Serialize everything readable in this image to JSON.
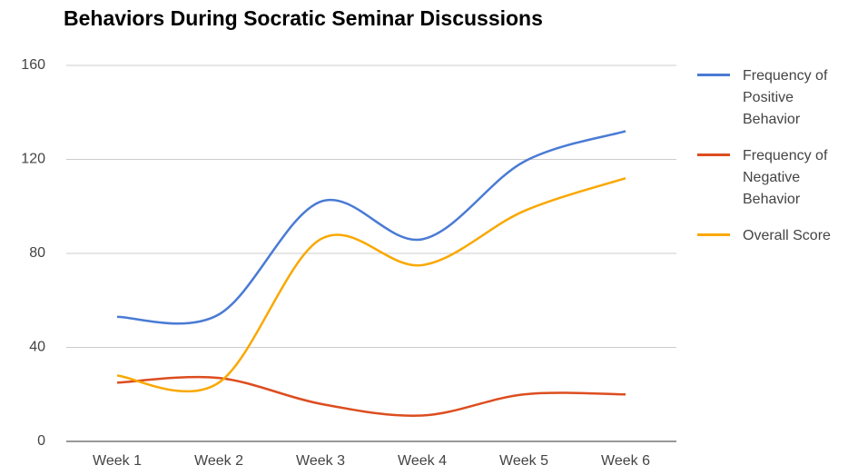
{
  "chart_data": {
    "type": "line",
    "title": "Behaviors During Socratic Seminar Discussions",
    "categories": [
      "Week 1",
      "Week 2",
      "Week 3",
      "Week 4",
      "Week 5",
      "Week 6"
    ],
    "series": [
      {
        "name": "Frequency of Positive Behavior",
        "color": "#4a7bd4",
        "values": [
          53,
          54,
          102,
          86,
          119,
          132
        ]
      },
      {
        "name": "Frequency of Negative Behavior",
        "color": "#dc4d1f",
        "values": [
          25,
          27,
          16,
          11,
          20,
          20
        ]
      },
      {
        "name": "Overall Score",
        "color": "#f9a800",
        "values": [
          28,
          25,
          86,
          75,
          98,
          112
        ]
      }
    ],
    "ylim": [
      0,
      160
    ],
    "yticks": [
      0,
      40,
      80,
      120,
      160
    ],
    "grid": true,
    "legend": "right"
  }
}
